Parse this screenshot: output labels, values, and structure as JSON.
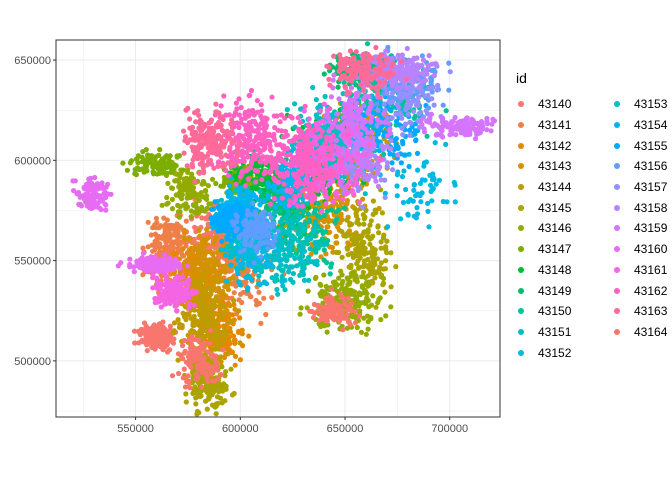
{
  "chart_data": {
    "type": "scatter",
    "title": "",
    "xlabel": "",
    "ylabel": "",
    "xlim": [
      512000,
      724000
    ],
    "ylim": [
      472000,
      660000
    ],
    "x_ticks": [
      550000,
      600000,
      650000,
      700000
    ],
    "y_ticks": [
      500000,
      550000,
      600000,
      650000
    ],
    "x_tick_labels": [
      "550000",
      "600000",
      "650000",
      "700000"
    ],
    "y_tick_labels": [
      "500000",
      "550000",
      "600000",
      "650000"
    ],
    "grid": true,
    "legend": {
      "title": "id",
      "placement": "right",
      "entries": [
        "43140",
        "43141",
        "43142",
        "43143",
        "43144",
        "43145",
        "43146",
        "43147",
        "43148",
        "43149",
        "43150",
        "43151",
        "43152",
        "43153",
        "43154",
        "43155",
        "43156",
        "43157",
        "43158",
        "43159",
        "43160",
        "43161",
        "43162",
        "43163",
        "43164"
      ],
      "colors": [
        "#F8766D",
        "#EF7F49",
        "#E38900",
        "#D39200",
        "#C09B00",
        "#AAA300",
        "#93AA00",
        "#7CAE00",
        "#00BA38",
        "#00BE67",
        "#00C19A",
        "#00BFC4",
        "#00B9E3",
        "#00BFC4",
        "#00B4F0",
        "#00A9FF",
        "#619CFF",
        "#9590FF",
        "#B983FF",
        "#D575FE",
        "#E76BF3",
        "#F564E3",
        "#FF61C3",
        "#FF6A98",
        "#F8766D"
      ]
    },
    "series": [
      {
        "name": "43140",
        "clusters": [
          [
            560000,
            512000,
            4000,
            3000,
            160
          ],
          [
            590000,
            560000,
            8000,
            8000,
            200
          ]
        ]
      },
      {
        "name": "43141",
        "clusters": [
          [
            566000,
            555000,
            5000,
            9000,
            240
          ],
          [
            600000,
            545000,
            8000,
            10000,
            160
          ]
        ]
      },
      {
        "name": "43142",
        "clusters": [
          [
            578000,
            540000,
            4000,
            8000,
            200
          ],
          [
            590000,
            515000,
            5000,
            8000,
            160
          ]
        ]
      },
      {
        "name": "43143",
        "clusters": [
          [
            585000,
            545000,
            6000,
            10000,
            200
          ],
          [
            640000,
            575000,
            10000,
            12000,
            220
          ]
        ]
      },
      {
        "name": "43144",
        "clusters": [
          [
            582000,
            520000,
            6000,
            9000,
            200
          ],
          [
            655000,
            610000,
            8000,
            10000,
            220
          ]
        ]
      },
      {
        "name": "43145",
        "clusters": [
          [
            585000,
            490000,
            5000,
            7000,
            180
          ],
          [
            660000,
            555000,
            6000,
            12000,
            160
          ]
        ]
      },
      {
        "name": "43146",
        "clusters": [
          [
            575000,
            585000,
            5000,
            6000,
            120
          ],
          [
            650000,
            530000,
            8000,
            7000,
            200
          ]
        ]
      },
      {
        "name": "43147",
        "clusters": [
          [
            560000,
            598000,
            6000,
            3000,
            100
          ],
          [
            600000,
            590000,
            5000,
            4000,
            120
          ]
        ]
      },
      {
        "name": "43148",
        "clusters": [
          [
            608000,
            590000,
            6000,
            6000,
            120
          ],
          [
            640000,
            600000,
            8000,
            10000,
            160
          ]
        ]
      },
      {
        "name": "43149",
        "clusters": [
          [
            660000,
            645000,
            8000,
            4000,
            160
          ],
          [
            620000,
            580000,
            6000,
            10000,
            140
          ]
        ]
      },
      {
        "name": "43150",
        "clusters": [
          [
            630000,
            565000,
            8000,
            10000,
            140
          ],
          [
            670000,
            630000,
            10000,
            10000,
            140
          ]
        ]
      },
      {
        "name": "43151",
        "clusters": [
          [
            620000,
            555000,
            10000,
            10000,
            200
          ],
          [
            640000,
            610000,
            8000,
            10000,
            160
          ]
        ]
      },
      {
        "name": "43152",
        "clusters": [
          [
            605000,
            555000,
            6000,
            8000,
            140
          ],
          [
            685000,
            585000,
            8000,
            8000,
            60
          ]
        ]
      },
      {
        "name": "43153",
        "clusters": [
          [
            600000,
            570000,
            5000,
            8000,
            120
          ],
          [
            650000,
            610000,
            8000,
            10000,
            120
          ]
        ]
      },
      {
        "name": "43154",
        "clusters": [
          [
            600000,
            575000,
            5000,
            5000,
            200
          ],
          [
            625000,
            590000,
            5000,
            6000,
            120
          ]
        ]
      },
      {
        "name": "43155",
        "clusters": [
          [
            595000,
            570000,
            4000,
            4000,
            160
          ],
          [
            670000,
            615000,
            8000,
            8000,
            120
          ]
        ]
      },
      {
        "name": "43156",
        "clusters": [
          [
            608000,
            565000,
            5000,
            6000,
            120
          ],
          [
            680000,
            640000,
            8000,
            6000,
            120
          ]
        ]
      },
      {
        "name": "43157",
        "clusters": [
          [
            655000,
            600000,
            8000,
            10000,
            100
          ],
          [
            680000,
            630000,
            8000,
            8000,
            100
          ]
        ]
      },
      {
        "name": "43158",
        "clusters": [
          [
            675000,
            645000,
            8000,
            4000,
            160
          ],
          [
            660000,
            600000,
            6000,
            6000,
            80
          ]
        ]
      },
      {
        "name": "43159",
        "clusters": [
          [
            705000,
            617000,
            8000,
            2500,
            120
          ],
          [
            655000,
            620000,
            8000,
            10000,
            160
          ]
        ]
      },
      {
        "name": "43160",
        "clusters": [
          [
            530000,
            583000,
            4000,
            4000,
            100
          ],
          [
            558000,
            548000,
            6000,
            2000,
            120
          ]
        ]
      },
      {
        "name": "43161",
        "clusters": [
          [
            568000,
            535000,
            5000,
            4000,
            140
          ],
          [
            640000,
            600000,
            10000,
            12000,
            200
          ]
        ]
      },
      {
        "name": "43162",
        "clusters": [
          [
            605000,
            610000,
            8000,
            10000,
            240
          ],
          [
            630000,
            600000,
            8000,
            10000,
            200
          ]
        ]
      },
      {
        "name": "43163",
        "clusters": [
          [
            585000,
            610000,
            6000,
            8000,
            180
          ],
          [
            660000,
            645000,
            8000,
            5000,
            140
          ]
        ]
      },
      {
        "name": "43164",
        "clusters": [
          [
            645000,
            525000,
            5000,
            4000,
            100
          ],
          [
            580000,
            500000,
            5000,
            6000,
            120
          ]
        ]
      }
    ]
  }
}
